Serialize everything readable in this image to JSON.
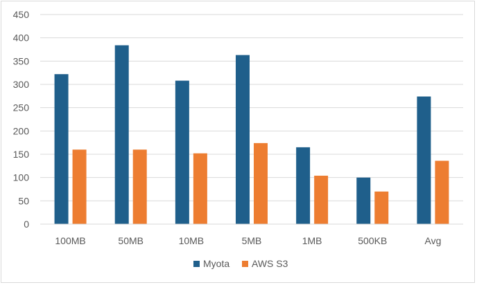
{
  "chart_data": {
    "type": "bar",
    "categories": [
      "100MB",
      "50MB",
      "10MB",
      "5MB",
      "1MB",
      "500KB",
      "Avg"
    ],
    "series": [
      {
        "name": "Myota",
        "color": "#1f5f8b",
        "values": [
          322,
          384,
          308,
          363,
          165,
          100,
          274
        ]
      },
      {
        "name": "AWS S3",
        "color": "#ed7d31",
        "values": [
          160,
          160,
          152,
          174,
          104,
          70,
          136
        ]
      }
    ],
    "ylim": [
      0,
      450
    ],
    "yticks": [
      0,
      50,
      100,
      150,
      200,
      250,
      300,
      350,
      400,
      450
    ],
    "grid": true,
    "legend_position": "bottom"
  }
}
